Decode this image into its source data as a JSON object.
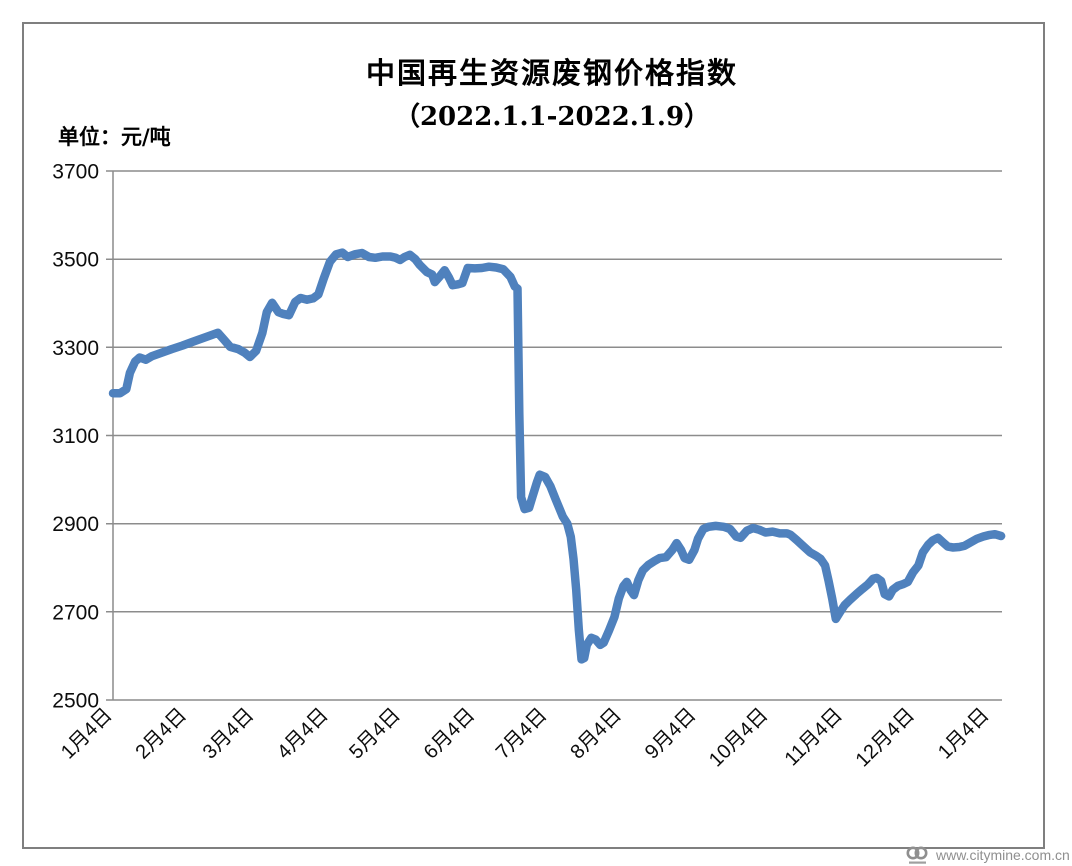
{
  "title": {
    "line1": "中国再生资源废钢价格指数",
    "line2": "（2022.1.1-2022.1.9）"
  },
  "unit_label": "单位：元/吨",
  "watermark": {
    "logo_name": "citymine-logo",
    "url_text": "www.citymine.com.cn"
  },
  "colors": {
    "line": "#4F81BD",
    "grid": "#8c8c8c",
    "frame": "#7f7f7f",
    "watermark_text": "#8f8f8f"
  },
  "chart_data": {
    "type": "line",
    "title": "中国再生资源废钢价格指数（2022.1.1-2022.1.9）",
    "ylabel": "单位：元/吨",
    "ylim": [
      2500,
      3700
    ],
    "y_ticks": [
      3700,
      3500,
      3300,
      3100,
      2900,
      2700,
      2500
    ],
    "x_tick_labels": [
      "1月4日",
      "2月4日",
      "3月4日",
      "4月4日",
      "5月4日",
      "6月4日",
      "7月4日",
      "8月4日",
      "9月4日",
      "10月4日",
      "11月4日",
      "12月4日",
      "1月4日"
    ],
    "x_tick_pos": [
      0.0,
      0.0838,
      0.1595,
      0.2432,
      0.3243,
      0.4081,
      0.4892,
      0.573,
      0.6568,
      0.7378,
      0.8216,
      0.9027,
      0.9865
    ],
    "grid": "horizontal",
    "legend": "none",
    "line_color": "#4F81BD",
    "grid_color": "#8c8c8c",
    "series": [
      {
        "name": "废钢价格指数",
        "points": [
          [
            0.0,
            3196
          ],
          [
            0.008,
            3196
          ],
          [
            0.015,
            3205
          ],
          [
            0.019,
            3242
          ],
          [
            0.025,
            3268
          ],
          [
            0.03,
            3277
          ],
          [
            0.037,
            3272
          ],
          [
            0.044,
            3280
          ],
          [
            0.055,
            3288
          ],
          [
            0.066,
            3296
          ],
          [
            0.078,
            3304
          ],
          [
            0.089,
            3312
          ],
          [
            0.1,
            3320
          ],
          [
            0.111,
            3328
          ],
          [
            0.118,
            3333
          ],
          [
            0.125,
            3317
          ],
          [
            0.132,
            3301
          ],
          [
            0.141,
            3296
          ],
          [
            0.148,
            3288
          ],
          [
            0.154,
            3278
          ],
          [
            0.161,
            3292
          ],
          [
            0.168,
            3333
          ],
          [
            0.173,
            3380
          ],
          [
            0.179,
            3401
          ],
          [
            0.186,
            3380
          ],
          [
            0.191,
            3376
          ],
          [
            0.198,
            3373
          ],
          [
            0.205,
            3403
          ],
          [
            0.211,
            3412
          ],
          [
            0.218,
            3408
          ],
          [
            0.225,
            3411
          ],
          [
            0.231,
            3420
          ],
          [
            0.237,
            3456
          ],
          [
            0.244,
            3494
          ],
          [
            0.251,
            3511
          ],
          [
            0.258,
            3515
          ],
          [
            0.264,
            3505
          ],
          [
            0.272,
            3511
          ],
          [
            0.28,
            3514
          ],
          [
            0.288,
            3505
          ],
          [
            0.295,
            3503
          ],
          [
            0.303,
            3506
          ],
          [
            0.312,
            3506
          ],
          [
            0.318,
            3503
          ],
          [
            0.323,
            3498
          ],
          [
            0.328,
            3505
          ],
          [
            0.334,
            3510
          ],
          [
            0.34,
            3500
          ],
          [
            0.345,
            3487
          ],
          [
            0.353,
            3471
          ],
          [
            0.359,
            3465
          ],
          [
            0.362,
            3448
          ],
          [
            0.368,
            3462
          ],
          [
            0.373,
            3475
          ],
          [
            0.378,
            3458
          ],
          [
            0.382,
            3441
          ],
          [
            0.388,
            3443
          ],
          [
            0.393,
            3446
          ],
          [
            0.399,
            3480
          ],
          [
            0.407,
            3479
          ],
          [
            0.415,
            3480
          ],
          [
            0.423,
            3483
          ],
          [
            0.431,
            3481
          ],
          [
            0.439,
            3477
          ],
          [
            0.447,
            3460
          ],
          [
            0.452,
            3438
          ],
          [
            0.455,
            3433
          ],
          [
            0.457,
            3150
          ],
          [
            0.459,
            2960
          ],
          [
            0.463,
            2933
          ],
          [
            0.468,
            2936
          ],
          [
            0.472,
            2962
          ],
          [
            0.477,
            2995
          ],
          [
            0.48,
            3011
          ],
          [
            0.486,
            3006
          ],
          [
            0.492,
            2985
          ],
          [
            0.498,
            2955
          ],
          [
            0.506,
            2916
          ],
          [
            0.511,
            2900
          ],
          [
            0.515,
            2870
          ],
          [
            0.518,
            2820
          ],
          [
            0.521,
            2750
          ],
          [
            0.524,
            2660
          ],
          [
            0.527,
            2592
          ],
          [
            0.53,
            2595
          ],
          [
            0.533,
            2625
          ],
          [
            0.538,
            2641
          ],
          [
            0.543,
            2637
          ],
          [
            0.548,
            2625
          ],
          [
            0.552,
            2630
          ],
          [
            0.558,
            2658
          ],
          [
            0.564,
            2688
          ],
          [
            0.569,
            2730
          ],
          [
            0.574,
            2758
          ],
          [
            0.578,
            2768
          ],
          [
            0.582,
            2750
          ],
          [
            0.586,
            2738
          ],
          [
            0.591,
            2772
          ],
          [
            0.596,
            2794
          ],
          [
            0.602,
            2806
          ],
          [
            0.609,
            2815
          ],
          [
            0.615,
            2822
          ],
          [
            0.622,
            2824
          ],
          [
            0.629,
            2840
          ],
          [
            0.634,
            2856
          ],
          [
            0.639,
            2840
          ],
          [
            0.643,
            2822
          ],
          [
            0.648,
            2818
          ],
          [
            0.654,
            2840
          ],
          [
            0.658,
            2866
          ],
          [
            0.664,
            2888
          ],
          [
            0.67,
            2893
          ],
          [
            0.678,
            2895
          ],
          [
            0.687,
            2893
          ],
          [
            0.694,
            2888
          ],
          [
            0.701,
            2871
          ],
          [
            0.706,
            2868
          ],
          [
            0.713,
            2884
          ],
          [
            0.72,
            2890
          ],
          [
            0.727,
            2886
          ],
          [
            0.734,
            2880
          ],
          [
            0.742,
            2882
          ],
          [
            0.75,
            2878
          ],
          [
            0.758,
            2878
          ],
          [
            0.762,
            2875
          ],
          [
            0.769,
            2863
          ],
          [
            0.777,
            2848
          ],
          [
            0.784,
            2835
          ],
          [
            0.791,
            2827
          ],
          [
            0.796,
            2820
          ],
          [
            0.801,
            2805
          ],
          [
            0.805,
            2770
          ],
          [
            0.809,
            2730
          ],
          [
            0.813,
            2684
          ],
          [
            0.818,
            2700
          ],
          [
            0.823,
            2715
          ],
          [
            0.829,
            2727
          ],
          [
            0.836,
            2740
          ],
          [
            0.843,
            2752
          ],
          [
            0.849,
            2762
          ],
          [
            0.855,
            2775
          ],
          [
            0.859,
            2777
          ],
          [
            0.864,
            2770
          ],
          [
            0.868,
            2740
          ],
          [
            0.873,
            2735
          ],
          [
            0.877,
            2750
          ],
          [
            0.883,
            2759
          ],
          [
            0.889,
            2763
          ],
          [
            0.894,
            2768
          ],
          [
            0.9,
            2790
          ],
          [
            0.906,
            2805
          ],
          [
            0.911,
            2835
          ],
          [
            0.917,
            2852
          ],
          [
            0.922,
            2862
          ],
          [
            0.928,
            2868
          ],
          [
            0.934,
            2857
          ],
          [
            0.939,
            2848
          ],
          [
            0.945,
            2846
          ],
          [
            0.952,
            2847
          ],
          [
            0.958,
            2850
          ],
          [
            0.965,
            2858
          ],
          [
            0.972,
            2866
          ],
          [
            0.979,
            2871
          ],
          [
            0.985,
            2874
          ],
          [
            0.992,
            2876
          ],
          [
            0.999,
            2872
          ]
        ]
      }
    ]
  }
}
